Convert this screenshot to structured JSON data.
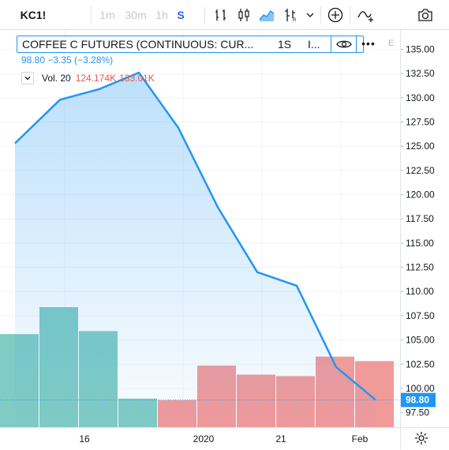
{
  "toolbar": {
    "symbol": "KC1!",
    "intervals": [
      {
        "label": "1m",
        "selected": false
      },
      {
        "label": "30m",
        "selected": false
      },
      {
        "label": "1h",
        "selected": false
      },
      {
        "label": "S",
        "selected": true
      }
    ],
    "icons": [
      "bar-chart-icon",
      "candles-icon",
      "area-chart-icon",
      "alt-chart-icon",
      "chevron-down-icon",
      "add-compare-icon",
      "indicators-icon",
      "screenshot-icon"
    ]
  },
  "legend": {
    "title": "COFFEE C FUTURES (CONTINUOUS: CUR...",
    "interval": "1S",
    "exchange": "I...",
    "more": "•••",
    "quote": "98.80  −3.35 (−3.28%)",
    "volume": {
      "label": "Vol. 20",
      "value1": "124.174K",
      "value2": "133.01K"
    }
  },
  "e_label": "E",
  "price_axis": {
    "ticks": [
      "135.00",
      "132.50",
      "130.00",
      "127.50",
      "125.00",
      "122.50",
      "120.00",
      "117.50",
      "115.00",
      "112.50",
      "110.00",
      "107.50",
      "105.00",
      "102.50",
      "100.00",
      "97.50"
    ],
    "last_price_label": "98.80"
  },
  "time_axis": {
    "ticks": [
      "16",
      "2020",
      "21",
      "Feb"
    ]
  },
  "colors": {
    "line": "#2196f3",
    "up_volume": "#80cbc4",
    "down_volume": "#f19a9a",
    "accent": "#2962ff"
  },
  "chart_data": {
    "type": "area",
    "title": "COFFEE C FUTURES (CONTINUOUS: CUR...",
    "x": [
      "p0",
      "p1",
      "p2",
      "p3",
      "p4",
      "p5",
      "p6",
      "p7",
      "p8",
      "p9"
    ],
    "series": [
      {
        "name": "",
        "values": [
          125.3,
          129.8,
          130.9,
          132.6,
          126.9,
          118.7,
          112.0,
          110.6,
          102.2,
          98.8
        ]
      }
    ],
    "volume": {
      "values": [
        0.62,
        0.8,
        0.64,
        0.19,
        0.18,
        0.41,
        0.35,
        0.34,
        0.47,
        0.44
      ],
      "direction": [
        "up",
        "up",
        "up",
        "up",
        "down",
        "down",
        "down",
        "down",
        "down",
        "down"
      ]
    },
    "ylim": [
      96.0,
      137.0
    ],
    "last_value": 98.8,
    "grid": true,
    "xlabel": "",
    "ylabel": ""
  }
}
